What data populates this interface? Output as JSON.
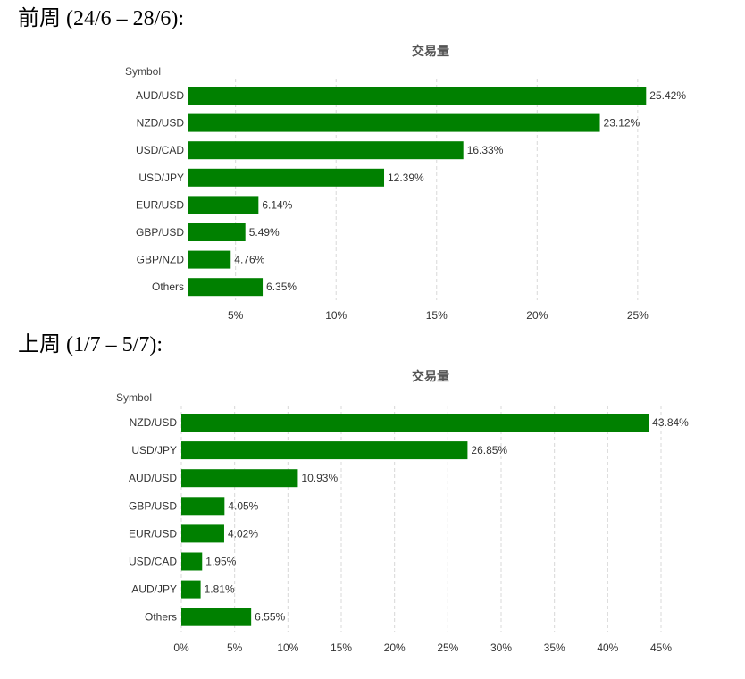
{
  "headings": [
    "前周 (24/6 – 28/6):",
    "上周 (1/7 – 5/7):"
  ],
  "bar_color": "#008000",
  "chart_data": [
    {
      "type": "bar",
      "orientation": "horizontal",
      "title": "交易量",
      "ylabel": "Symbol",
      "categories": [
        "AUD/USD",
        "NZD/USD",
        "USD/CAD",
        "USD/JPY",
        "EUR/USD",
        "GBP/USD",
        "GBP/NZD",
        "Others"
      ],
      "values": [
        25.42,
        23.12,
        16.33,
        12.39,
        6.14,
        5.49,
        4.76,
        6.35
      ],
      "data_labels": [
        "25.42%",
        "23.12%",
        "16.33%",
        "12.39%",
        "6.14%",
        "5.49%",
        "4.76%",
        "6.35%"
      ],
      "xticks": [
        5,
        10,
        15,
        20,
        25
      ],
      "xtick_labels": [
        "5%",
        "10%",
        "15%",
        "20%",
        "25%"
      ],
      "xlim": [
        2.66,
        25.54
      ],
      "grid": true
    },
    {
      "type": "bar",
      "orientation": "horizontal",
      "title": "交易量",
      "ylabel": "Symbol",
      "categories": [
        "NZD/USD",
        "USD/JPY",
        "AUD/USD",
        "GBP/USD",
        "EUR/USD",
        "USD/CAD",
        "AUD/JPY",
        "Others"
      ],
      "values": [
        43.84,
        26.85,
        10.93,
        4.05,
        4.02,
        1.95,
        1.81,
        6.55
      ],
      "data_labels": [
        "43.84%",
        "26.85%",
        "10.93%",
        "4.05%",
        "4.02%",
        "1.95%",
        "1.81%",
        "6.55%"
      ],
      "xticks": [
        0,
        5,
        10,
        15,
        20,
        25,
        30,
        35,
        40,
        45
      ],
      "xtick_labels": [
        "0%",
        "5%",
        "10%",
        "15%",
        "20%",
        "25%",
        "30%",
        "35%",
        "40%",
        "45%"
      ],
      "xlim": [
        0,
        45
      ],
      "grid": true
    }
  ]
}
